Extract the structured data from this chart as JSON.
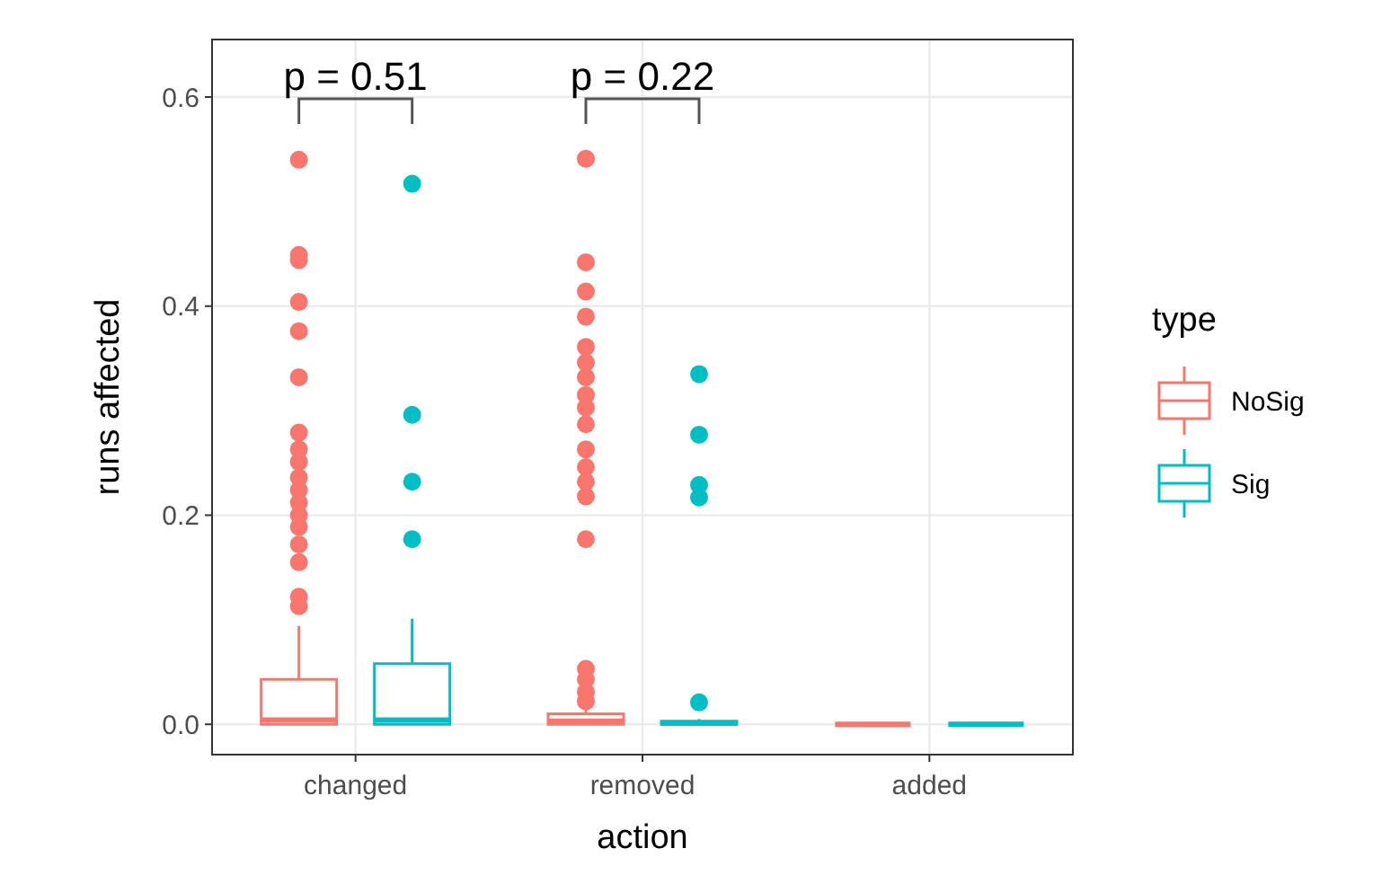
{
  "chart_data": {
    "type": "box",
    "xlabel": "action",
    "ylabel": "runs affected",
    "legend_title": "type",
    "legend": "right",
    "grid": true,
    "categories": [
      "changed",
      "removed",
      "added"
    ],
    "ylim": [
      -0.029,
      0.655
    ],
    "yticks": [
      {
        "value": 0,
        "label": "0.0"
      },
      {
        "value": 0.2,
        "label": "0.2"
      },
      {
        "value": 0.4,
        "label": "0.4"
      },
      {
        "value": 0.6,
        "label": "0.6"
      }
    ],
    "series": [
      {
        "name": "NoSig",
        "color": "#f8766d",
        "boxes": [
          {
            "low": 0,
            "q1": 0,
            "median": 0.004,
            "q3": 0.043,
            "high": 0.094,
            "outliers": [
              0.54,
              0.449,
              0.444,
              0.404,
              0.376,
              0.332,
              0.279,
              0.263,
              0.251,
              0.236,
              0.224,
              0.212,
              0.2,
              0.189,
              0.172,
              0.155,
              0.122,
              0.113
            ]
          },
          {
            "low": 0,
            "q1": 0,
            "median": 0.003,
            "q3": 0.01,
            "high": 0.016,
            "outliers": [
              0.541,
              0.442,
              0.414,
              0.39,
              0.361,
              0.346,
              0.332,
              0.315,
              0.303,
              0.287,
              0.263,
              0.246,
              0.232,
              0.218,
              0.177,
              0.053,
              0.043,
              0.031,
              0.022
            ]
          },
          {
            "low": 0,
            "q1": 0,
            "median": 0,
            "q3": 0,
            "high": 0
          }
        ]
      },
      {
        "name": "Sig",
        "color": "#00bfc4",
        "boxes": [
          {
            "low": 0,
            "q1": 0,
            "median": 0.004,
            "q3": 0.058,
            "high": 0.101,
            "outliers": [
              0.517,
              0.296,
              0.232,
              0.177
            ]
          },
          {
            "low": 0,
            "q1": 0,
            "median": 0.001,
            "q3": 0.003,
            "high": 0.005,
            "outliers": [
              0.335,
              0.277,
              0.229,
              0.217,
              0.021
            ]
          },
          {
            "low": 0,
            "q1": 0,
            "median": 0,
            "q3": 0,
            "high": 0
          }
        ]
      }
    ],
    "annotations": [
      "p = 0.51",
      "p = 0.22"
    ]
  }
}
